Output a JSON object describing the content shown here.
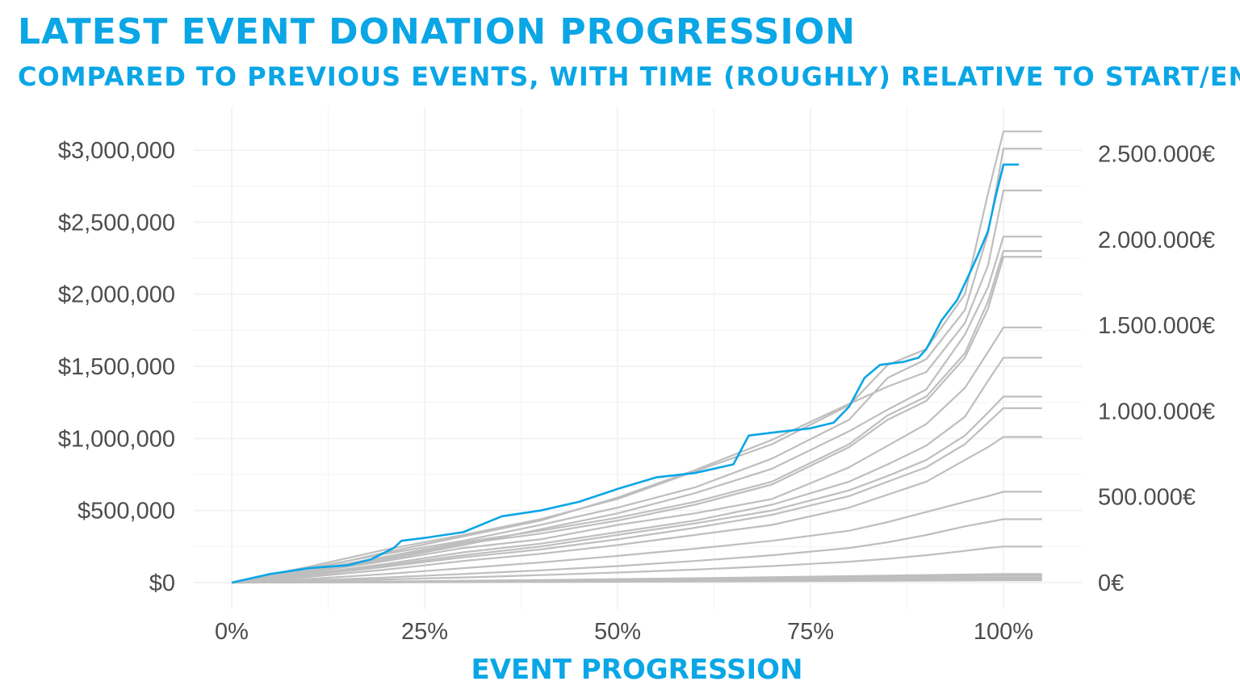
{
  "header": {
    "title": "LATEST EVENT DONATION PROGRESSION",
    "subtitle": "COMPARED TO PREVIOUS EVENTS, WITH TIME (ROUGHLY) RELATIVE TO START/EN"
  },
  "chart_data": {
    "type": "line",
    "title": "LATEST EVENT DONATION PROGRESSION",
    "subtitle": "COMPARED TO PREVIOUS EVENTS, WITH TIME (ROUGHLY) RELATIVE TO START/EN",
    "xlabel": "EVENT PROGRESSION",
    "ylabel": "",
    "xlim": [
      -0.03,
      1.08
    ],
    "ylim": [
      -170000,
      3330000
    ],
    "x_ticks": [
      0,
      0.25,
      0.5,
      0.75,
      1.0
    ],
    "x_tick_labels": [
      "0%",
      "25%",
      "50%",
      "75%",
      "100%"
    ],
    "y_ticks": [
      0,
      500000,
      1000000,
      1500000,
      2000000,
      2500000,
      3000000
    ],
    "y_tick_labels": [
      "$0",
      "$500,000",
      "$1,000,000",
      "$1,500,000",
      "$2,000,000",
      "$2,500,000",
      "$3,000,000"
    ],
    "y2_ticks": [
      0,
      500000,
      1000000,
      1500000,
      2000000,
      2500000
    ],
    "y2_tick_labels": [
      "0€",
      "500.000€",
      "1.000.000€",
      "1.500.000€",
      "2.000.000€",
      "2.500.000€"
    ],
    "eur_to_usd": 1.19,
    "grid": true,
    "colors": {
      "highlight": "#0aa6e6",
      "previous": "#bebebe",
      "grid": "#f3f3f3",
      "text": "#4d4d4d"
    },
    "series": [
      {
        "role": "latest",
        "x": [
          0,
          0.05,
          0.1,
          0.15,
          0.18,
          0.21,
          0.22,
          0.25,
          0.3,
          0.35,
          0.4,
          0.45,
          0.5,
          0.55,
          0.6,
          0.65,
          0.67,
          0.7,
          0.75,
          0.78,
          0.8,
          0.82,
          0.84,
          0.87,
          0.89,
          0.9,
          0.92,
          0.94,
          0.96,
          0.97,
          0.98,
          0.99,
          1.0,
          1.02
        ],
        "y": [
          0,
          60000,
          100000,
          120000,
          160000,
          240000,
          290000,
          310000,
          350000,
          460000,
          500000,
          560000,
          650000,
          730000,
          760000,
          820000,
          1020000,
          1040000,
          1070000,
          1110000,
          1220000,
          1420000,
          1510000,
          1530000,
          1560000,
          1620000,
          1820000,
          1960000,
          2190000,
          2310000,
          2440000,
          2680000,
          2900000,
          2900000
        ]
      },
      {
        "role": "previous",
        "x": [
          0,
          0.1,
          0.2,
          0.3,
          0.4,
          0.5,
          0.6,
          0.7,
          0.8,
          0.85,
          0.9,
          0.95,
          0.98,
          1.0,
          1.05
        ],
        "y": [
          0,
          110000,
          230000,
          330000,
          440000,
          580000,
          770000,
          960000,
          1230000,
          1510000,
          1620000,
          2000000,
          2700000,
          3130000,
          3130000
        ]
      },
      {
        "role": "previous",
        "x": [
          0,
          0.1,
          0.2,
          0.3,
          0.4,
          0.5,
          0.6,
          0.7,
          0.8,
          0.85,
          0.9,
          0.95,
          0.98,
          1.0,
          1.05
        ],
        "y": [
          0,
          100000,
          200000,
          290000,
          400000,
          520000,
          660000,
          860000,
          1130000,
          1420000,
          1550000,
          1890000,
          2420000,
          3010000,
          3010000
        ]
      },
      {
        "role": "previous",
        "x": [
          0,
          0.1,
          0.2,
          0.3,
          0.4,
          0.5,
          0.6,
          0.7,
          0.8,
          0.85,
          0.9,
          0.95,
          0.98,
          1.0,
          1.05
        ],
        "y": [
          0,
          90000,
          210000,
          320000,
          430000,
          590000,
          780000,
          990000,
          1240000,
          1360000,
          1460000,
          1800000,
          2200000,
          2720000,
          2720000
        ]
      },
      {
        "role": "previous",
        "x": [
          0,
          0.1,
          0.2,
          0.3,
          0.4,
          0.5,
          0.6,
          0.7,
          0.8,
          0.85,
          0.9,
          0.95,
          0.98,
          1.0,
          1.05
        ],
        "y": [
          0,
          80000,
          160000,
          260000,
          370000,
          480000,
          620000,
          790000,
          1050000,
          1200000,
          1340000,
          1720000,
          2050000,
          2400000,
          2400000
        ]
      },
      {
        "role": "previous",
        "x": [
          0,
          0.1,
          0.2,
          0.3,
          0.4,
          0.5,
          0.6,
          0.7,
          0.8,
          0.85,
          0.9,
          0.95,
          0.98,
          1.0,
          1.05
        ],
        "y": [
          0,
          85000,
          180000,
          280000,
          360000,
          450000,
          560000,
          700000,
          960000,
          1160000,
          1290000,
          1590000,
          1950000,
          2300000,
          2300000
        ]
      },
      {
        "role": "previous",
        "x": [
          0,
          0.1,
          0.2,
          0.3,
          0.4,
          0.5,
          0.6,
          0.7,
          0.8,
          0.85,
          0.9,
          0.95,
          0.98,
          1.0,
          1.05
        ],
        "y": [
          0,
          75000,
          170000,
          270000,
          340000,
          430000,
          540000,
          680000,
          940000,
          1130000,
          1260000,
          1560000,
          1900000,
          2260000,
          2260000
        ]
      },
      {
        "role": "previous",
        "x": [
          0,
          0.1,
          0.2,
          0.3,
          0.4,
          0.5,
          0.6,
          0.7,
          0.8,
          0.85,
          0.9,
          0.95,
          0.98,
          1.0,
          1.05
        ],
        "y": [
          0,
          70000,
          150000,
          240000,
          300000,
          400000,
          480000,
          580000,
          800000,
          950000,
          1100000,
          1350000,
          1600000,
          1770000,
          1770000
        ]
      },
      {
        "role": "previous",
        "x": [
          0,
          0.1,
          0.2,
          0.3,
          0.4,
          0.5,
          0.6,
          0.7,
          0.8,
          0.85,
          0.9,
          0.95,
          0.98,
          1.0,
          1.05
        ],
        "y": [
          0,
          60000,
          130000,
          210000,
          270000,
          350000,
          430000,
          540000,
          700000,
          820000,
          950000,
          1150000,
          1400000,
          1560000,
          1560000
        ]
      },
      {
        "role": "previous",
        "x": [
          0,
          0.1,
          0.2,
          0.3,
          0.4,
          0.5,
          0.6,
          0.7,
          0.8,
          0.85,
          0.9,
          0.95,
          0.98,
          1.0,
          1.05
        ],
        "y": [
          0,
          55000,
          120000,
          190000,
          250000,
          330000,
          410000,
          500000,
          640000,
          740000,
          850000,
          1020000,
          1180000,
          1290000,
          1290000
        ]
      },
      {
        "role": "previous",
        "x": [
          0,
          0.1,
          0.2,
          0.3,
          0.4,
          0.5,
          0.6,
          0.7,
          0.8,
          0.85,
          0.9,
          0.95,
          0.98,
          1.0,
          1.05
        ],
        "y": [
          0,
          50000,
          110000,
          175000,
          230000,
          300000,
          380000,
          470000,
          600000,
          700000,
          800000,
          960000,
          1110000,
          1210000,
          1210000
        ]
      },
      {
        "role": "previous",
        "x": [
          0,
          0.1,
          0.2,
          0.3,
          0.4,
          0.5,
          0.6,
          0.7,
          0.8,
          0.85,
          0.9,
          0.95,
          0.98,
          1.0,
          1.05
        ],
        "y": [
          0,
          40000,
          90000,
          150000,
          200000,
          260000,
          330000,
          400000,
          520000,
          610000,
          700000,
          850000,
          940000,
          1010000,
          1010000
        ]
      },
      {
        "role": "previous",
        "x": [
          0,
          0.1,
          0.2,
          0.3,
          0.4,
          0.5,
          0.6,
          0.7,
          0.8,
          0.85,
          0.9,
          0.95,
          0.98,
          1.0,
          1.05
        ],
        "y": [
          0,
          25000,
          60000,
          100000,
          140000,
          185000,
          235000,
          290000,
          360000,
          420000,
          490000,
          560000,
          600000,
          630000,
          630000
        ]
      },
      {
        "role": "previous",
        "x": [
          0,
          0.1,
          0.2,
          0.3,
          0.4,
          0.5,
          0.6,
          0.7,
          0.8,
          0.85,
          0.9,
          0.95,
          0.98,
          1.0,
          1.05
        ],
        "y": [
          0,
          15000,
          35000,
          60000,
          85000,
          115000,
          150000,
          190000,
          240000,
          280000,
          330000,
          390000,
          420000,
          440000,
          440000
        ]
      },
      {
        "role": "previous",
        "x": [
          0,
          0.1,
          0.2,
          0.3,
          0.4,
          0.5,
          0.6,
          0.7,
          0.8,
          0.85,
          0.9,
          0.95,
          0.98,
          1.0,
          1.05
        ],
        "y": [
          0,
          10000,
          22000,
          36000,
          52000,
          70000,
          90000,
          115000,
          145000,
          165000,
          190000,
          220000,
          240000,
          250000,
          250000
        ]
      },
      {
        "role": "previous",
        "x": [
          0,
          0.2,
          0.4,
          0.6,
          0.8,
          1.0,
          1.05
        ],
        "y": [
          0,
          8000,
          18000,
          30000,
          45000,
          60000,
          60000
        ]
      },
      {
        "role": "previous",
        "x": [
          0,
          0.2,
          0.4,
          0.6,
          0.8,
          1.0,
          1.05
        ],
        "y": [
          0,
          6000,
          14000,
          24000,
          36000,
          48000,
          48000
        ]
      },
      {
        "role": "previous",
        "x": [
          0,
          0.2,
          0.4,
          0.6,
          0.8,
          1.0,
          1.05
        ],
        "y": [
          0,
          4000,
          10000,
          17000,
          26000,
          35000,
          35000
        ]
      },
      {
        "role": "previous",
        "x": [
          0,
          0.2,
          0.4,
          0.6,
          0.8,
          1.0,
          1.05
        ],
        "y": [
          0,
          3000,
          7000,
          12000,
          18000,
          25000,
          25000
        ]
      },
      {
        "role": "previous",
        "x": [
          0,
          0.2,
          0.4,
          0.6,
          0.8,
          1.0,
          1.05
        ],
        "y": [
          0,
          2000,
          5000,
          8000,
          12000,
          16000,
          16000
        ]
      }
    ]
  }
}
